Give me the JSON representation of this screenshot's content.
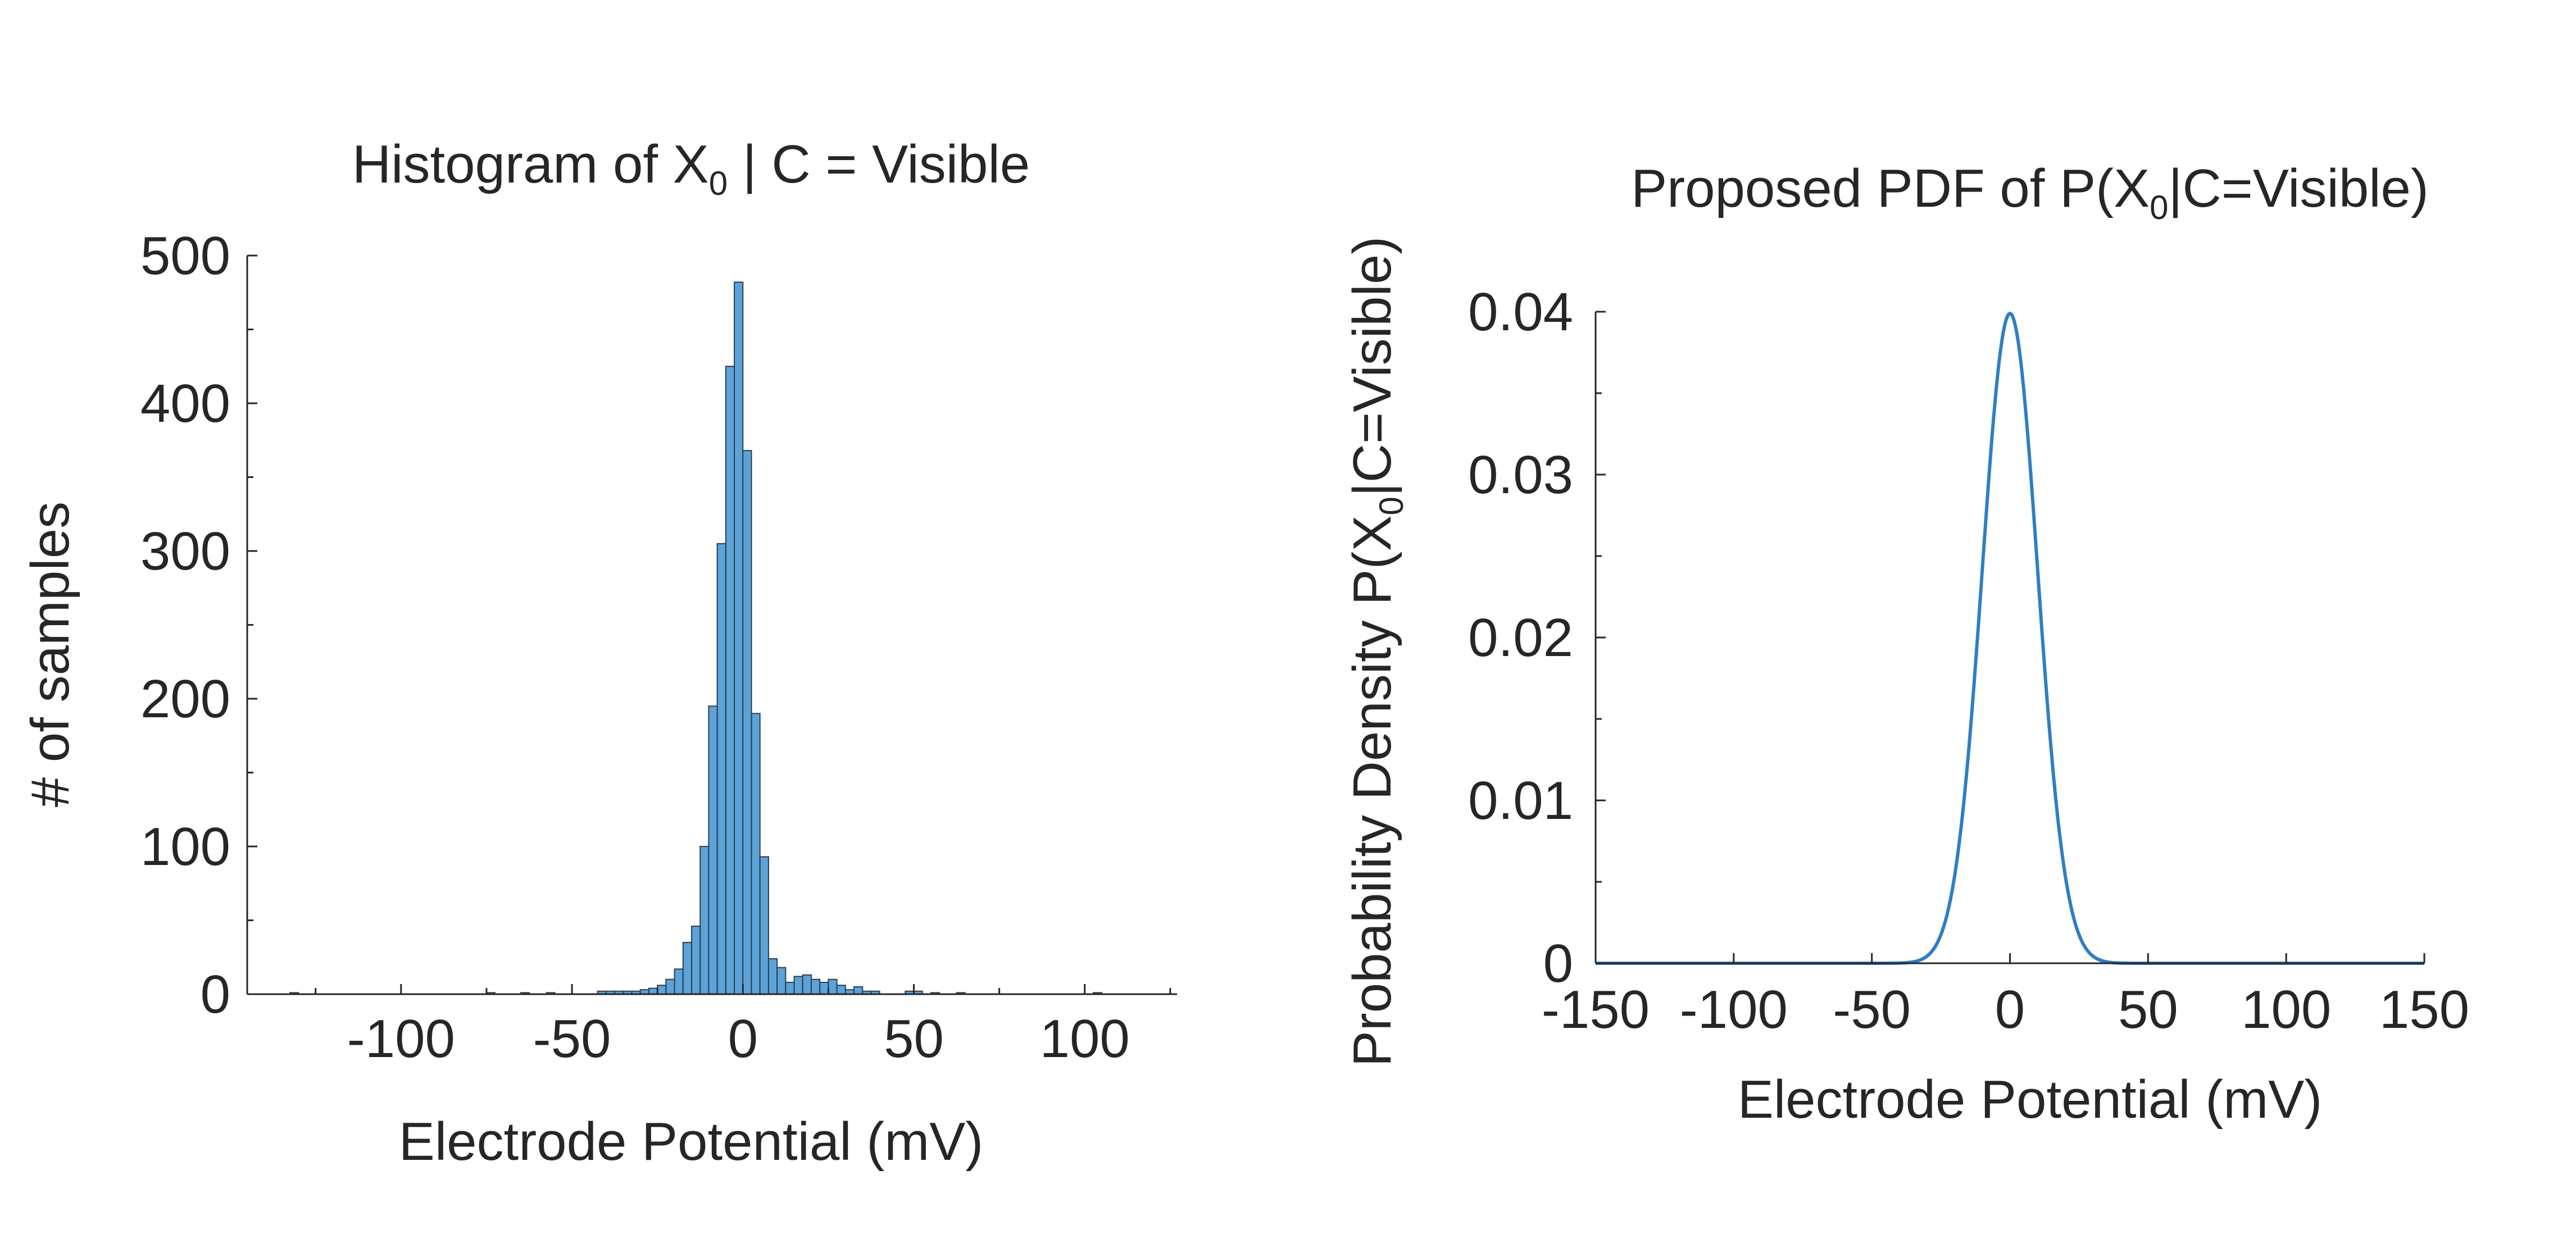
{
  "colors": {
    "bar_fill": "#5ba3d9",
    "bar_edge": "#2f3d4d",
    "line": "#2f7ec4",
    "axis": "#262626"
  },
  "chart_data": [
    {
      "type": "bar",
      "title": "Histogram of X",
      "title_subscript": "0",
      "title_suffix": " | C = Visible",
      "xlabel": "Electrode Potential (mV)",
      "ylabel": "#  of samples",
      "xlim": [
        -145,
        127
      ],
      "ylim": [
        0,
        500
      ],
      "xticks": [
        -100,
        -50,
        0,
        50,
        100
      ],
      "yticks": [
        0,
        100,
        200,
        300,
        400,
        500
      ],
      "grid": false,
      "bin_width": 2.5,
      "bins": [
        {
          "x": -132.5,
          "value": 1
        },
        {
          "x": -75,
          "value": 1
        },
        {
          "x": -65,
          "value": 1
        },
        {
          "x": -57.5,
          "value": 1
        },
        {
          "x": -42.5,
          "value": 2
        },
        {
          "x": -40,
          "value": 2
        },
        {
          "x": -37.5,
          "value": 2
        },
        {
          "x": -35,
          "value": 2
        },
        {
          "x": -32.5,
          "value": 2
        },
        {
          "x": -30,
          "value": 3
        },
        {
          "x": -27.5,
          "value": 4
        },
        {
          "x": -25,
          "value": 6
        },
        {
          "x": -22.5,
          "value": 10
        },
        {
          "x": -20,
          "value": 17
        },
        {
          "x": -17.5,
          "value": 35
        },
        {
          "x": -15,
          "value": 46
        },
        {
          "x": -12.5,
          "value": 100
        },
        {
          "x": -10,
          "value": 195
        },
        {
          "x": -7.5,
          "value": 305
        },
        {
          "x": -5,
          "value": 425
        },
        {
          "x": -2.5,
          "value": 482
        },
        {
          "x": 0,
          "value": 368
        },
        {
          "x": 2.5,
          "value": 190
        },
        {
          "x": 5,
          "value": 93
        },
        {
          "x": 7.5,
          "value": 24
        },
        {
          "x": 10,
          "value": 18
        },
        {
          "x": 12.5,
          "value": 8
        },
        {
          "x": 15,
          "value": 12
        },
        {
          "x": 17.5,
          "value": 13
        },
        {
          "x": 20,
          "value": 10
        },
        {
          "x": 22.5,
          "value": 8
        },
        {
          "x": 25,
          "value": 10
        },
        {
          "x": 27.5,
          "value": 6
        },
        {
          "x": 30,
          "value": 3
        },
        {
          "x": 32.5,
          "value": 5
        },
        {
          "x": 35,
          "value": 2
        },
        {
          "x": 37.5,
          "value": 2
        },
        {
          "x": 47.5,
          "value": 2
        },
        {
          "x": 50,
          "value": 2
        },
        {
          "x": 55,
          "value": 1
        },
        {
          "x": 62.5,
          "value": 1
        },
        {
          "x": 102.5,
          "value": 1
        }
      ]
    },
    {
      "type": "line",
      "title": "Proposed PDF of P(X",
      "title_subscript": "0",
      "title_suffix": "|C=Visible)",
      "xlabel": "Electrode Potential (mV)",
      "ylabel": "Probability Density P(X",
      "ylabel_subscript": "0",
      "ylabel_suffix": "|C=Visible)",
      "xlim": [
        -150,
        150
      ],
      "ylim": [
        0,
        0.04
      ],
      "xticks": [
        -150,
        -100,
        -50,
        0,
        50,
        100,
        150
      ],
      "yticks": [
        0,
        0.01,
        0.02,
        0.03,
        0.04
      ],
      "ytick_labels": [
        "0",
        "0.01",
        "0.02",
        "0.03",
        "0.04"
      ],
      "grid": false,
      "distribution": {
        "family": "normal",
        "mean": 0,
        "std": 10
      },
      "peak_value": 0.0399
    }
  ]
}
